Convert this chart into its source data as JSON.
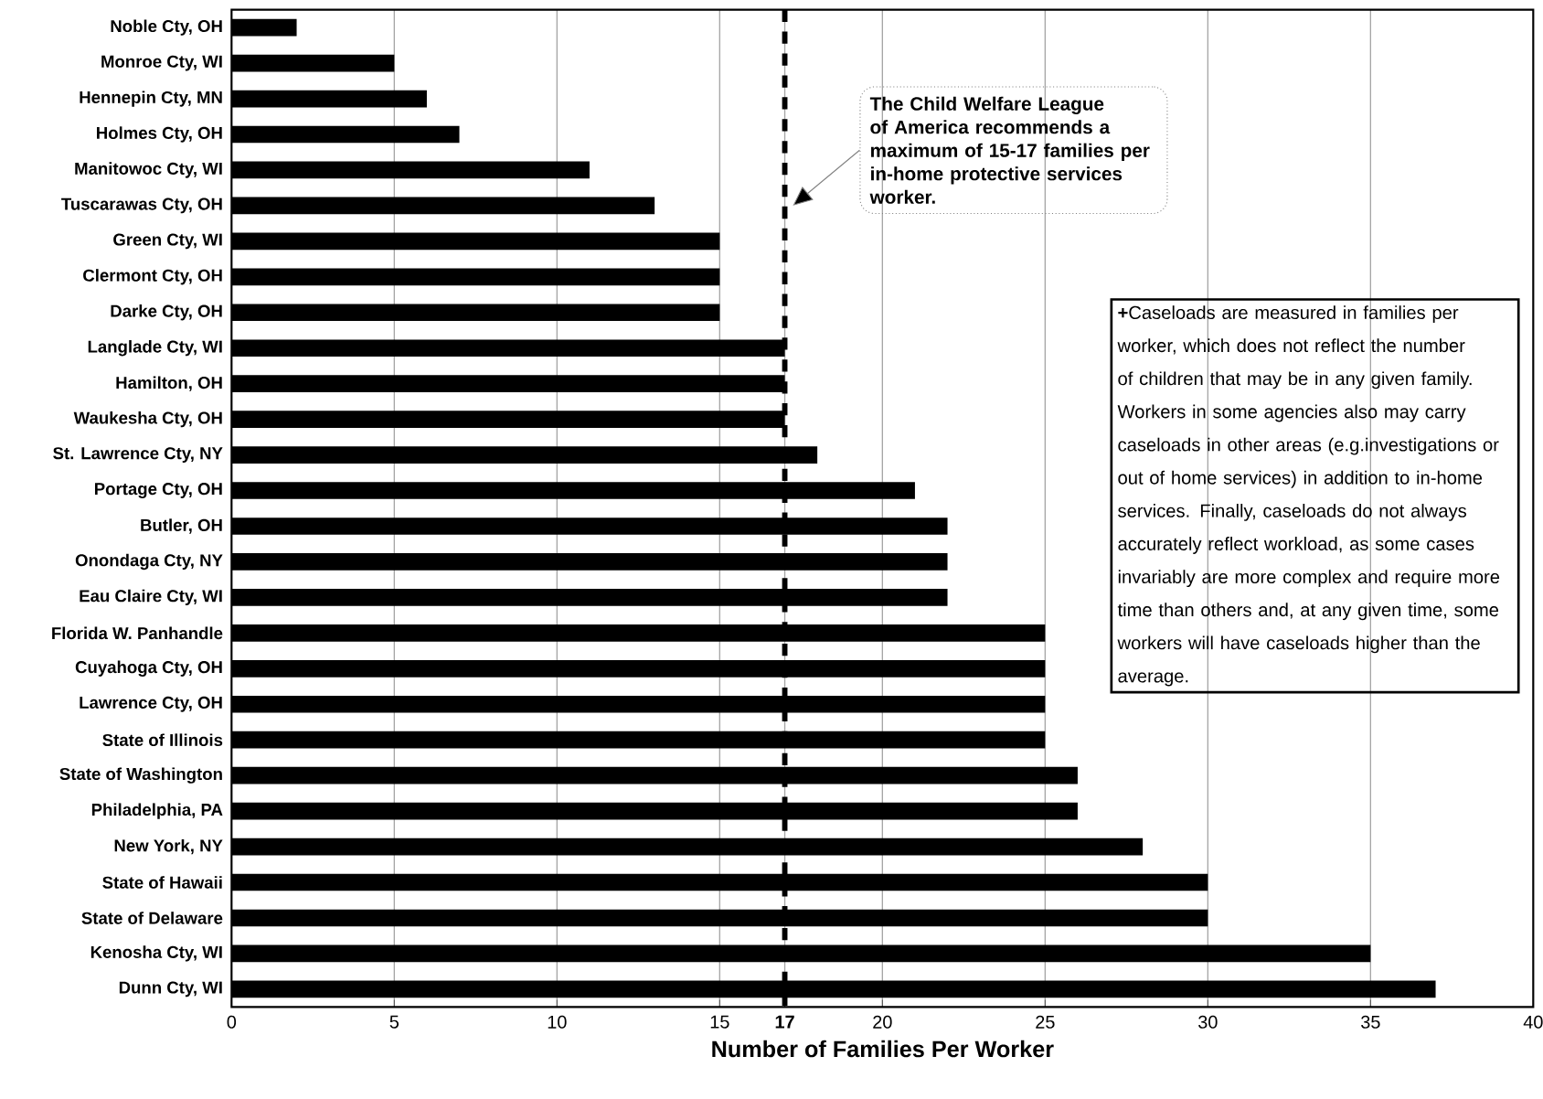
{
  "chart_data": {
    "type": "bar",
    "orientation": "horizontal",
    "color": "#000000",
    "xlabel": "Number of Families Per Worker",
    "categories": [
      "Noble Cty, OH",
      "Monroe Cty, WI",
      "Hennepin Cty, MN",
      "Holmes Cty, OH",
      "Manitowoc Cty, WI",
      "Tuscarawas Cty, OH",
      "Green Cty, WI",
      "Clermont Cty, OH",
      "Darke Cty, OH",
      "Langlade Cty, WI",
      "Hamilton, OH",
      "Waukesha Cty, OH",
      "St. Lawrence Cty, NY",
      "Portage Cty, OH",
      "Butler, OH",
      "Onondaga Cty, NY",
      "Eau Claire Cty, WI",
      "Florida W. Panhandle",
      "Cuyahoga Cty, OH",
      "Lawrence Cty, OH",
      "State of Illinois",
      "State of Washington",
      "Philadelphia, PA",
      "New York, NY",
      "State of Hawaii",
      "State of Delaware",
      "Kenosha Cty, WI",
      "Dunn Cty, WI"
    ],
    "values": [
      2,
      5,
      6,
      7,
      11,
      13,
      15,
      15,
      15,
      17,
      17,
      17,
      18,
      21,
      22,
      22,
      22,
      25,
      25,
      25,
      25,
      26,
      26,
      28,
      30,
      30,
      35,
      37
    ],
    "xlim": [
      0,
      40
    ],
    "xticks": [
      0,
      5,
      10,
      15,
      17,
      20,
      25,
      30,
      35,
      40
    ],
    "grid": "x",
    "ref_lines": [
      {
        "axis": "x",
        "value": 17,
        "color": "#000000",
        "line_style": "dashed"
      }
    ],
    "annotations": [
      "The Child Welfare League of America recommends a maximum of 15-17 families per in-home protective services worker.",
      "**+**Caseloads are measured in families per worker, which does not reflect the number of children that may be in any given family.  Workers in some agencies also may carry caseloads in other areas (e.g.investigations or out of home services) in addition to in-home services.  Finally, caseloads do not always accurately reflect workload, as some cases invariably are more complex and require more time than others and, at any given time, some workers will have caseloads higher than the average."
    ]
  }
}
